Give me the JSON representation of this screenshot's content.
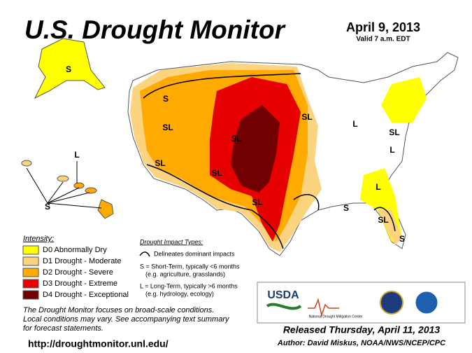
{
  "header": {
    "title": "U.S. Drought Monitor",
    "date": "April 9, 2013",
    "valid": "Valid 7 a.m. EDT"
  },
  "legend": {
    "title": "Intensity:",
    "items": [
      {
        "label": "D0 Abnormally Dry",
        "color": "#ffff00"
      },
      {
        "label": "D1 Drought - Moderate",
        "color": "#fcd37f"
      },
      {
        "label": "D2 Drought - Severe",
        "color": "#ffaa00"
      },
      {
        "label": "D3 Drought - Extreme",
        "color": "#e60000"
      },
      {
        "label": "D4 Drought - Exceptional",
        "color": "#730000"
      }
    ]
  },
  "impact": {
    "title": "Drought Impact Types:",
    "delineates": "Delineates dominant impacts",
    "short": [
      "S = Short-Term, typically <6 months",
      "(e.g. agriculture, grasslands)"
    ],
    "long": [
      "L = Long-Term, typically >6 months",
      "(e.g. hydrology, ecology)"
    ]
  },
  "map": {
    "labels": [
      "S",
      "S",
      "SL",
      "SL",
      "SL",
      "SL",
      "SL",
      "SL",
      "L",
      "L",
      "L",
      "SL",
      "SL",
      "S",
      "S",
      "L",
      "S"
    ]
  },
  "note": [
    "The Drought Monitor focuses on broad-scale conditions.",
    "Local conditions may vary. See accompanying text summary",
    "for forecast statements."
  ],
  "logos": {
    "usda": "USDA",
    "ndmc": "National Drought Mitigation Center"
  },
  "footer": {
    "url": "http://droughtmonitor.unl.edu/",
    "released": "Released Thursday, April 11, 2013",
    "author": "Author: David Miskus, NOAA/NWS/NCEP/CPC"
  }
}
